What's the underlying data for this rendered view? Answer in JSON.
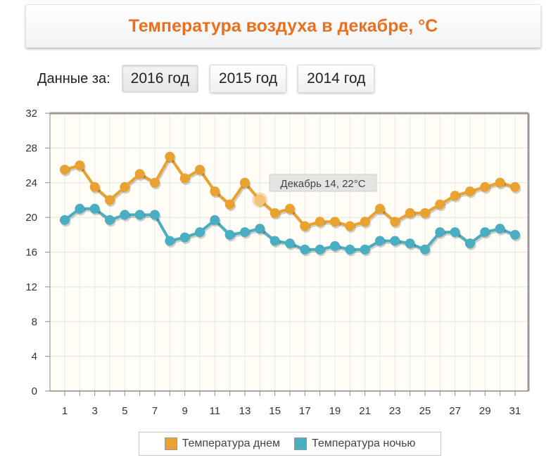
{
  "title": "Температура воздуха в декабре, °С",
  "selector": {
    "label": "Данные за:",
    "years": [
      "2016 год",
      "2015 год",
      "2014 год"
    ],
    "active": 0
  },
  "colors": {
    "day": "#e9a22f",
    "night": "#4aaec2",
    "title": "#e8701f"
  },
  "chart_data": {
    "type": "line",
    "x": [
      1,
      2,
      3,
      4,
      5,
      6,
      7,
      8,
      9,
      10,
      11,
      12,
      13,
      14,
      15,
      16,
      17,
      18,
      19,
      20,
      21,
      22,
      23,
      24,
      25,
      26,
      27,
      28,
      29,
      30,
      31
    ],
    "x_ticks": [
      1,
      3,
      5,
      7,
      9,
      11,
      13,
      15,
      17,
      19,
      21,
      23,
      25,
      27,
      29,
      31
    ],
    "ylim": [
      0,
      32
    ],
    "y_ticks": [
      0,
      4,
      8,
      12,
      16,
      20,
      24,
      28,
      32
    ],
    "grid": true,
    "series": [
      {
        "name": "Температура днем",
        "color": "#e9a22f",
        "values": [
          25.5,
          26,
          23.5,
          22,
          23.5,
          25,
          24,
          27,
          24.5,
          25.5,
          23,
          21.5,
          24,
          22,
          20.5,
          21,
          19,
          19.5,
          19.5,
          19,
          19.5,
          21,
          19.5,
          20.5,
          20.5,
          21.5,
          22.5,
          23,
          23.5,
          24,
          23.5
        ]
      },
      {
        "name": "Температура ночью",
        "color": "#4aaec2",
        "values": [
          19.7,
          21,
          21,
          19.7,
          20.3,
          20.3,
          20.3,
          17.3,
          17.7,
          18.3,
          19.7,
          18,
          18.3,
          18.7,
          17.3,
          17,
          16.3,
          16.3,
          16.7,
          16.3,
          16.3,
          17.3,
          17.3,
          17,
          16.3,
          18.3,
          18.3,
          17,
          18.3,
          18.7,
          18
        ]
      }
    ],
    "tooltip": "Декабрь 14, 22°C",
    "legend_position": "bottom-center"
  }
}
